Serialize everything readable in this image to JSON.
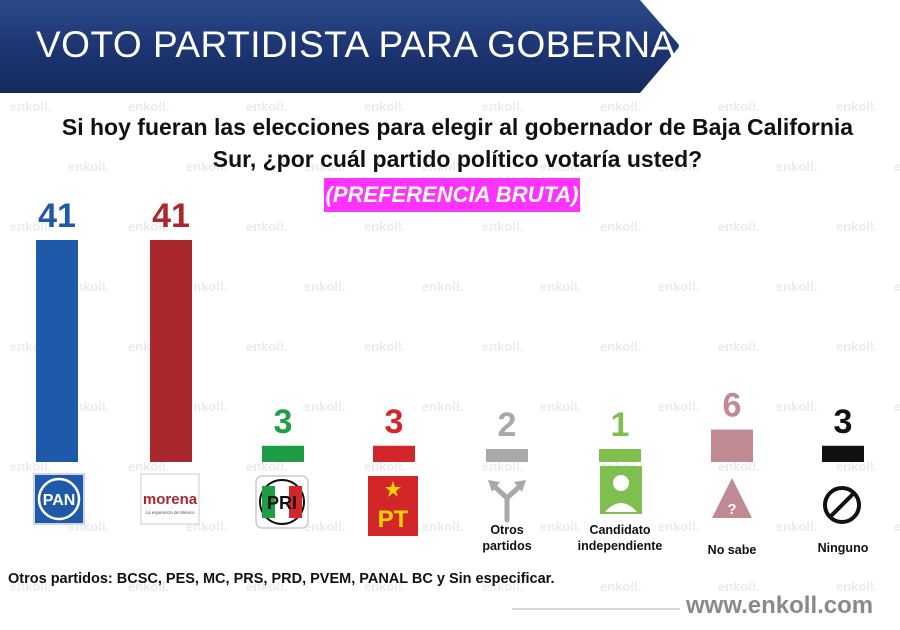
{
  "header": {
    "title": "VOTO PARTIDISTA PARA GOBERNADOR"
  },
  "question": {
    "line1": "Si hoy fueran las elecciones para elegir al gobernador de Baja California",
    "line2": "Sur, ¿por cuál partido político votaría usted?"
  },
  "tag": "(PREFERENCIA BRUTA)",
  "watermark": "enkoll.",
  "chart_data": {
    "type": "bar",
    "categories": [
      "PAN",
      "morena",
      "PRI",
      "PT",
      "Otros partidos",
      "Candidato independiente",
      "No sabe",
      "Ninguno"
    ],
    "values": [
      41,
      41,
      3,
      3,
      2,
      1,
      6,
      3
    ],
    "value_labels": [
      "41",
      "41",
      "3",
      "3",
      "2",
      "1",
      "6",
      "3"
    ],
    "bar_colors": [
      "#1f5aaa",
      "#a8282e",
      "#1f9d45",
      "#d2262a",
      "#a9a9a9",
      "#7fbf50",
      "#c08a94",
      "#111111"
    ],
    "label_colors": [
      "#1f5aaa",
      "#a8282e",
      "#1f9d45",
      "#d2262a",
      "#a9a9a9",
      "#7fbf50",
      "#c08a94",
      "#111111"
    ],
    "category_labels": [
      "",
      "",
      "",
      "",
      "Otros partidos",
      "Candidato independiente",
      "No sabe",
      "Ninguno"
    ],
    "logos": [
      {
        "text": "PAN",
        "icon": "pan-logo",
        "color": "#1f5aaa"
      },
      {
        "text": "morena",
        "subtext": "La esperanza de México",
        "icon": "morena-logo",
        "color": "#a8282e"
      },
      {
        "text": "PRI",
        "icon": "pri-logo",
        "color": "#d2262a"
      },
      {
        "text": "PT",
        "icon": "pt-logo",
        "color": "#d2262a"
      },
      {
        "text": "",
        "icon": "split-arrows-icon",
        "color": "#a9a9a9"
      },
      {
        "text": "",
        "icon": "person-icon",
        "color": "#7fbf50"
      },
      {
        "text": "?",
        "icon": "question-triangle-icon",
        "color": "#c08a94"
      },
      {
        "text": "",
        "icon": "prohibited-icon",
        "color": "#111111"
      }
    ],
    "ylim": [
      0,
      41
    ],
    "grid": false,
    "legend": "none"
  },
  "footnote": "Otros partidos: BCSC, PES, MC, PRS, PRD, PVEM, PANAL BC y Sin especificar.",
  "website": "www.enkoll.com"
}
